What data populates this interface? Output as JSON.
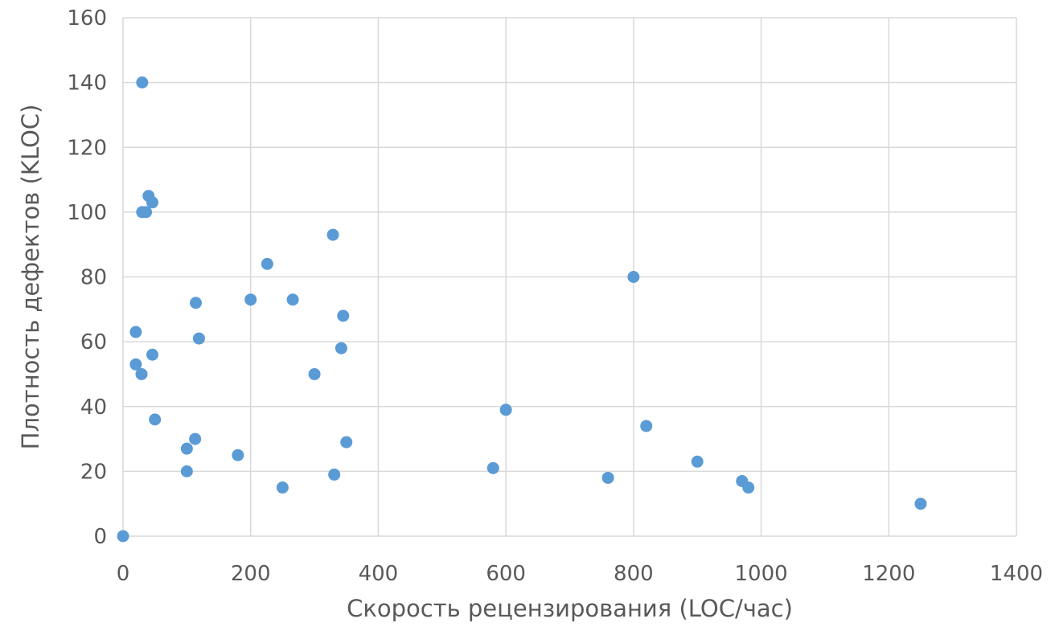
{
  "chart_data": {
    "type": "scatter",
    "title": "",
    "xlabel": "Скорость рецензирования (LOC/час)",
    "ylabel": "Плотность дефектов (KLOC)",
    "xlim": [
      0,
      1400
    ],
    "ylim": [
      0,
      160
    ],
    "x_ticks": [
      "0",
      "200",
      "400",
      "600",
      "800",
      "1000",
      "1200",
      "1400"
    ],
    "y_ticks": [
      "0",
      "20",
      "40",
      "60",
      "80",
      "100",
      "120",
      "140",
      "160"
    ],
    "grid": true,
    "legend": "none",
    "marker_color": "#5B9BD5",
    "grid_color": "#D9D9D9",
    "series": [
      {
        "points": [
          [
            0,
            0
          ],
          [
            30,
            140
          ],
          [
            40,
            105
          ],
          [
            46,
            103
          ],
          [
            30,
            100
          ],
          [
            36,
            100
          ],
          [
            20,
            63
          ],
          [
            20,
            53
          ],
          [
            29,
            50
          ],
          [
            46,
            56
          ],
          [
            50,
            36
          ],
          [
            100,
            27
          ],
          [
            100,
            20
          ],
          [
            113,
            30
          ],
          [
            114,
            72
          ],
          [
            119,
            61
          ],
          [
            180,
            25
          ],
          [
            200,
            73
          ],
          [
            226,
            84
          ],
          [
            250,
            15
          ],
          [
            266,
            73
          ],
          [
            300,
            50
          ],
          [
            329,
            93
          ],
          [
            331,
            19
          ],
          [
            342,
            58
          ],
          [
            345,
            68
          ],
          [
            350,
            29
          ],
          [
            580,
            21
          ],
          [
            600,
            39
          ],
          [
            760,
            18
          ],
          [
            800,
            80
          ],
          [
            820,
            34
          ],
          [
            900,
            23
          ],
          [
            970,
            17
          ],
          [
            980,
            15
          ],
          [
            1250,
            10
          ]
        ]
      }
    ]
  }
}
